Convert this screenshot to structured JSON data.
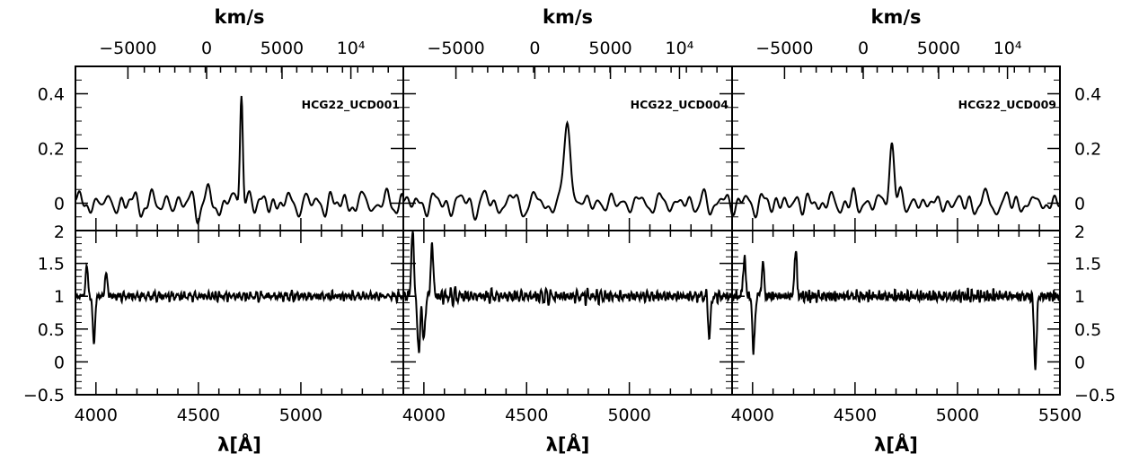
{
  "chart_data": {
    "type": "line",
    "layout": "3 columns x 2 rows",
    "x_axis": {
      "label": "λ[Å]",
      "range": [
        3900,
        5500
      ],
      "ticks": [
        4000,
        4500,
        5000
      ],
      "tick_labels": [
        "4000",
        "4500",
        "5000"
      ],
      "last_panel_extra_tick_label": "5500"
    },
    "top_axis": {
      "label": "km/s",
      "tick_labels": [
        "−5000",
        "0",
        "5000",
        "10⁴"
      ]
    },
    "top_row": {
      "ylim": [
        -0.1,
        0.5
      ],
      "yticks": [
        0.4,
        0.2,
        0
      ],
      "ytick_labels": [
        "0.4",
        "0.2",
        "0"
      ],
      "bottom_cut_label": "2"
    },
    "bottom_row": {
      "ylim": [
        -0.5,
        2
      ],
      "yticks": [
        2,
        1.5,
        1,
        0.5,
        0,
        -0.5
      ],
      "ytick_labels": [
        "2",
        "1.5",
        "1",
        "0.5",
        "0",
        "−0.5"
      ]
    },
    "panels": [
      {
        "label": "HCG22_UCD001",
        "top": {
          "peak_x": 4710,
          "peak_y": 0.44,
          "peak_width": 7,
          "noise": 0.05,
          "base": 0.0
        },
        "bottom": {
          "base": 1.0,
          "noise": 0.09,
          "features": [
            [
              3955,
              0.45
            ],
            [
              3990,
              -0.7
            ],
            [
              4050,
              0.35
            ]
          ]
        }
      },
      {
        "label": "HCG22_UCD004",
        "top": {
          "peak_x": 4700,
          "peak_y": 0.33,
          "peak_width": 14,
          "noise": 0.05,
          "base": 0.0
        },
        "bottom": {
          "base": 1.0,
          "noise": 0.13,
          "features": [
            [
              3945,
              1.0
            ],
            [
              3975,
              -0.9
            ],
            [
              4000,
              -0.7
            ],
            [
              4040,
              0.8
            ],
            [
              5390,
              -0.6
            ]
          ]
        }
      },
      {
        "label": "HCG22_UCD009",
        "top": {
          "peak_x": 4680,
          "peak_y": 0.23,
          "peak_width": 12,
          "noise": 0.05,
          "base": 0.0
        },
        "bottom": {
          "base": 1.0,
          "noise": 0.11,
          "features": [
            [
              3960,
              0.6
            ],
            [
              4005,
              -0.85
            ],
            [
              4050,
              0.5
            ],
            [
              4210,
              0.7
            ],
            [
              5380,
              -1.1
            ]
          ]
        }
      }
    ]
  }
}
